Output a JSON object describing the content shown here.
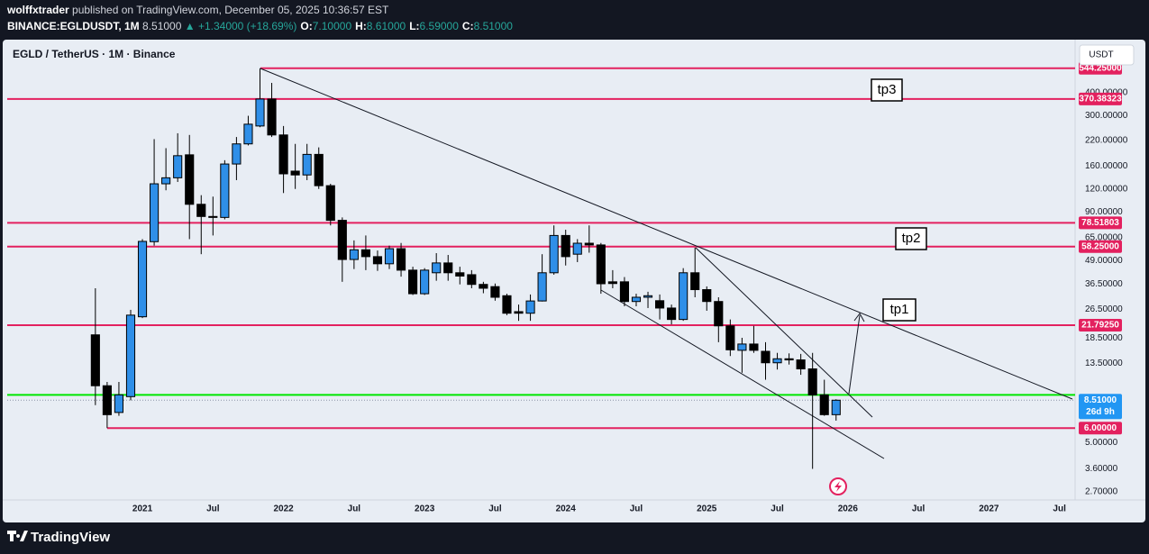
{
  "header": {
    "author": "wolffxtrader",
    "published": "published on TradingView.com, December 05, 2025 10:36:57 EST",
    "symbol": "BINANCE:EGLDUSDT, 1M",
    "price": "8.51000",
    "change": "▲ +1.34000 (+18.69%)",
    "ohlc": [
      {
        "key": "O:",
        "value": "7.10000"
      },
      {
        "key": "H:",
        "value": "8.61000"
      },
      {
        "key": "L:",
        "value": "6.59000"
      },
      {
        "key": "C:",
        "value": "8.51000"
      }
    ]
  },
  "chart_data": {
    "type": "candlestick",
    "title": "EGLD / TetherUS · 1M · Binance",
    "currency": "USDT",
    "log_scale": true,
    "grid": false,
    "up_color": "#2f8fe8",
    "down_color": "#000000",
    "ylim": [
      2.44,
      770
    ],
    "yticks": [
      {
        "value": 400,
        "label": "400.00000"
      },
      {
        "value": 300,
        "label": "300.00000"
      },
      {
        "value": 220,
        "label": "220.00000"
      },
      {
        "value": 160,
        "label": "160.00000"
      },
      {
        "value": 120,
        "label": "120.00000"
      },
      {
        "value": 90,
        "label": "90.00000"
      },
      {
        "value": 65,
        "label": "65.00000"
      },
      {
        "value": 49,
        "label": "49.00000"
      },
      {
        "value": 36.5,
        "label": "36.50000"
      },
      {
        "value": 26.5,
        "label": "26.50000"
      },
      {
        "value": 18.5,
        "label": "18.50000"
      },
      {
        "value": 13.5,
        "label": "13.50000"
      },
      {
        "value": 5,
        "label": "5.00000"
      },
      {
        "value": 3.6,
        "label": "3.60000"
      },
      {
        "value": 2.7,
        "label": "2.70000"
      }
    ],
    "xlim": [
      -7.5,
      83.1
    ],
    "xticks": [
      {
        "value": 4,
        "label": "2021"
      },
      {
        "value": 10,
        "label": "Jul"
      },
      {
        "value": 16,
        "label": "2022"
      },
      {
        "value": 22,
        "label": "Jul"
      },
      {
        "value": 28,
        "label": "2023"
      },
      {
        "value": 34,
        "label": "Jul"
      },
      {
        "value": 40,
        "label": "2024"
      },
      {
        "value": 46,
        "label": "Jul"
      },
      {
        "value": 52,
        "label": "2025"
      },
      {
        "value": 58,
        "label": "Jul"
      },
      {
        "value": 64,
        "label": "2026"
      },
      {
        "value": 70,
        "label": "Jul"
      },
      {
        "value": 76,
        "label": "2027"
      },
      {
        "value": 82,
        "label": "Jul"
      }
    ],
    "candles": [
      [
        19.3,
        34.6,
        8.0,
        10.2
      ],
      [
        10.2,
        10.7,
        6.0,
        7.1
      ],
      [
        7.3,
        10.7,
        7.0,
        9.1
      ],
      [
        8.9,
        26.4,
        8.5,
        24.7
      ],
      [
        24.2,
        64,
        23.8,
        62.2
      ],
      [
        62,
        224,
        59,
        128
      ],
      [
        128,
        200,
        118,
        138
      ],
      [
        138,
        241,
        131,
        182
      ],
      [
        184,
        236,
        64,
        99
      ],
      [
        99,
        111,
        53,
        85
      ],
      [
        85,
        109,
        67,
        84
      ],
      [
        84,
        172,
        82,
        164
      ],
      [
        164,
        230,
        134,
        211
      ],
      [
        211,
        300,
        207,
        270
      ],
      [
        264,
        544,
        260,
        370
      ],
      [
        370,
        453,
        230,
        236
      ],
      [
        236,
        264,
        114,
        145
      ],
      [
        150,
        211,
        120,
        143
      ],
      [
        143,
        211,
        134,
        185
      ],
      [
        185,
        202,
        120,
        125
      ],
      [
        125,
        128,
        76,
        81
      ],
      [
        81,
        84,
        37.5,
        49.6
      ],
      [
        49.6,
        63,
        44,
        56
      ],
      [
        56,
        67,
        43.4,
        51.4
      ],
      [
        51.4,
        55.5,
        43,
        47
      ],
      [
        47,
        59,
        44,
        56.8
      ],
      [
        56.8,
        61,
        40,
        43.4
      ],
      [
        43.4,
        45.3,
        31.8,
        32.3
      ],
      [
        32.3,
        44.5,
        31.8,
        43.4
      ],
      [
        42,
        53.7,
        38,
        47.5
      ],
      [
        47.5,
        52.5,
        38,
        42
      ],
      [
        42,
        45.3,
        36.3,
        40.3
      ],
      [
        41,
        43.4,
        34.6,
        36.3
      ],
      [
        36.3,
        37.5,
        32.5,
        34.6
      ],
      [
        35.3,
        36.7,
        29.6,
        30.9
      ],
      [
        31.5,
        32.3,
        24.7,
        25.3
      ],
      [
        25.8,
        28.2,
        23,
        25.3
      ],
      [
        25.3,
        32,
        23,
        29.5
      ],
      [
        29.5,
        53,
        29.3,
        42
      ],
      [
        42,
        76,
        41,
        67
      ],
      [
        67,
        72,
        46,
        51.4
      ],
      [
        53,
        64,
        48,
        60.8
      ],
      [
        60.8,
        76,
        54,
        59.5
      ],
      [
        59.5,
        61,
        32.3,
        36.6
      ],
      [
        37.5,
        43.4,
        34.6,
        36.7
      ],
      [
        37.5,
        39.8,
        27.6,
        29.3
      ],
      [
        29.3,
        32.3,
        27.6,
        30.9
      ],
      [
        30.9,
        33.1,
        27,
        31.5
      ],
      [
        29.6,
        32,
        23.4,
        27
      ],
      [
        27,
        28.2,
        22,
        23.4
      ],
      [
        23.4,
        44.5,
        23,
        42
      ],
      [
        42,
        57.5,
        30.9,
        34
      ],
      [
        34,
        35.4,
        26.1,
        29.3
      ],
      [
        29.3,
        30.9,
        17.6,
        21.6
      ],
      [
        21.6,
        23.4,
        14.8,
        16
      ],
      [
        15.9,
        18.6,
        12,
        17.2
      ],
      [
        17.2,
        21.6,
        15.4,
        15.9
      ],
      [
        15.7,
        17.6,
        11.0,
        13.6
      ],
      [
        13.6,
        15.4,
        12.5,
        14.3
      ],
      [
        14.3,
        15.3,
        13.3,
        14.1
      ],
      [
        14.1,
        15.2,
        11.7,
        12.6
      ],
      [
        12.6,
        15.4,
        3.6,
        9.1
      ],
      [
        9.1,
        11.0,
        7.0,
        7.1
      ],
      [
        7.1,
        8.61,
        6.59,
        8.51
      ]
    ],
    "levels": [
      {
        "value": 544.25,
        "label": "544.25000",
        "color": "#e3215f"
      },
      {
        "value": 370.38323,
        "color": "#e3215f"
      },
      {
        "value": 78.51803,
        "color": "#e3215f"
      },
      {
        "value": 58.25,
        "label": "58.25000",
        "color": "#e3215f"
      },
      {
        "value": 21.7925,
        "label": "21.79250",
        "color": "#e3215f"
      },
      {
        "value": 9.1,
        "color": "#00e600",
        "price_label": false
      },
      {
        "value": 6,
        "label": "6.00000",
        "color": "#e3215f"
      }
    ],
    "last_price": {
      "value": 8.51,
      "label": "8.51000",
      "color": "#2196f3"
    },
    "countdown": "26d 9h",
    "annotations": [
      "tp3",
      "tp2",
      "tp1"
    ]
  },
  "footer": {
    "brand": "TradingView"
  }
}
